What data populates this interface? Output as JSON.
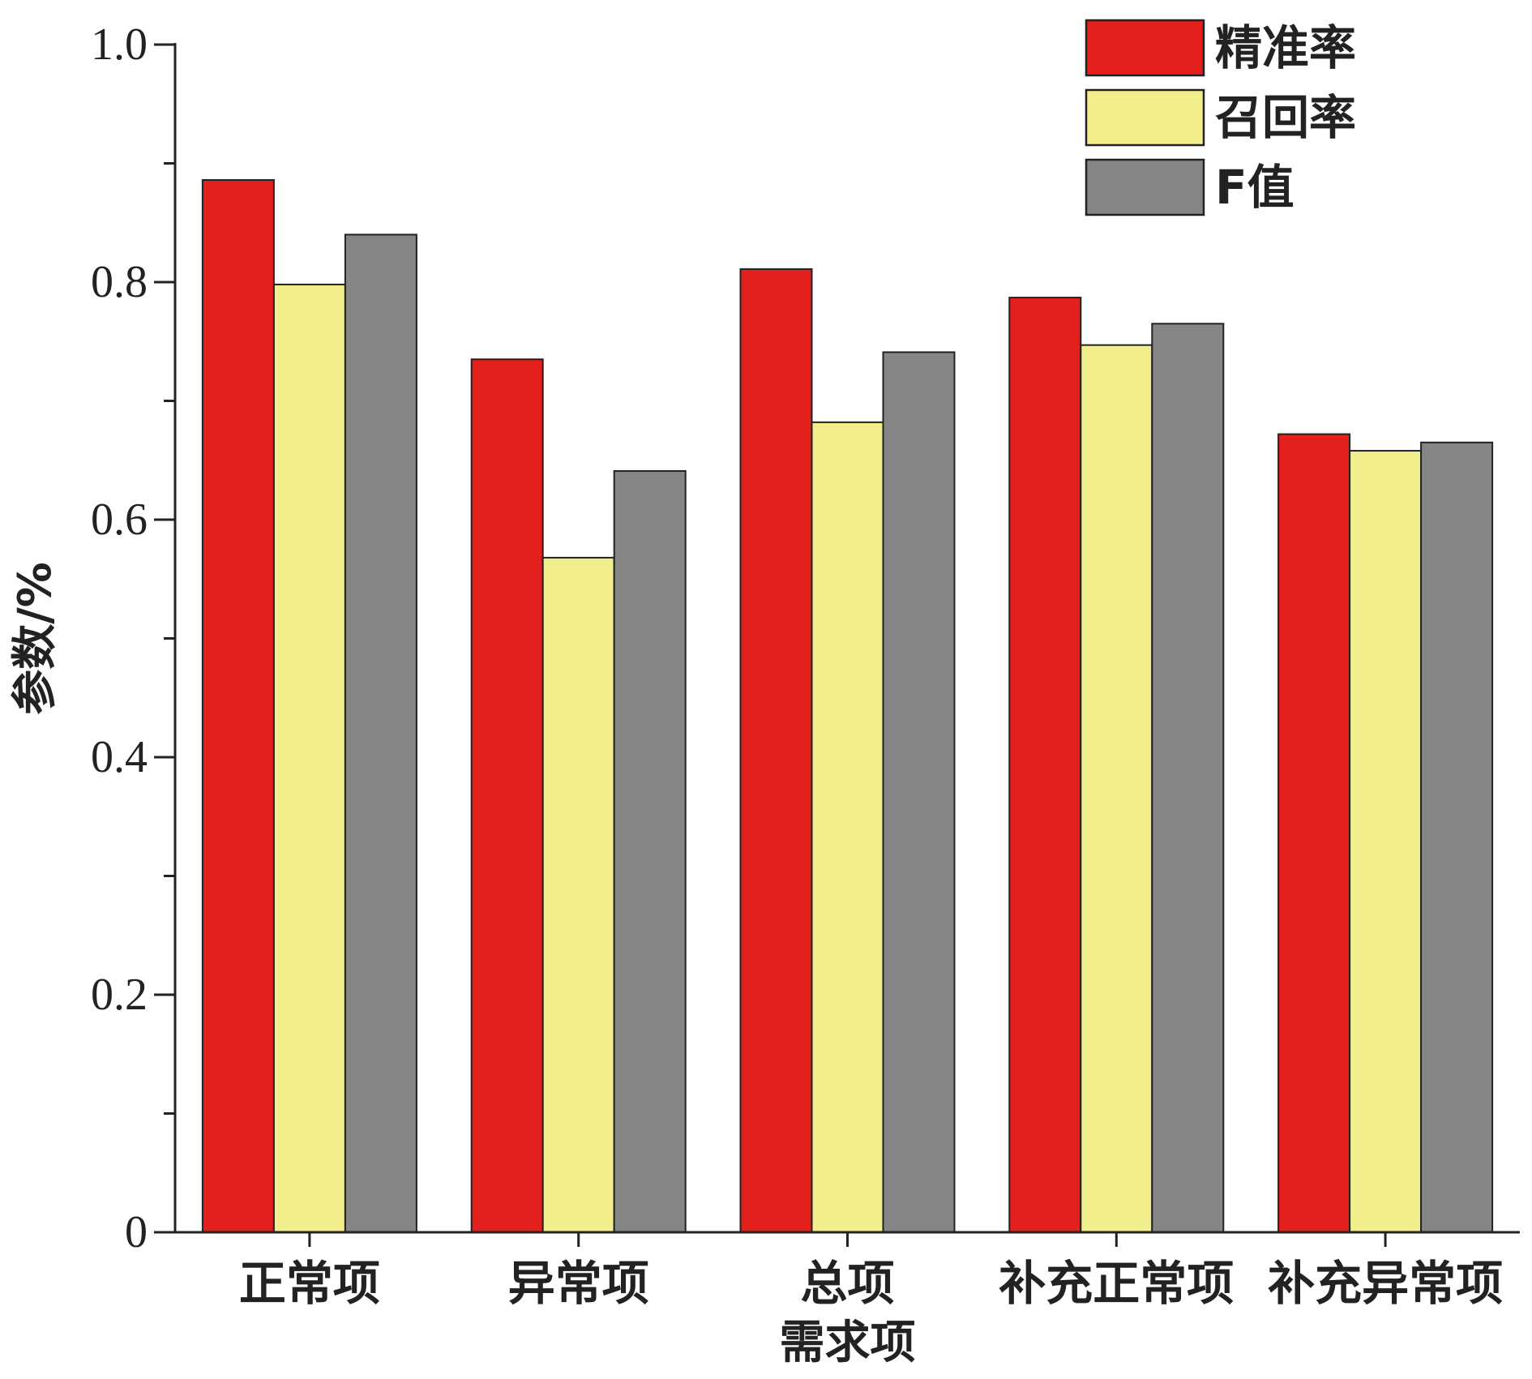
{
  "chart_data": {
    "type": "bar",
    "title": "",
    "xlabel": "需求项",
    "ylabel": "参数/%",
    "ylim": [
      0,
      1.0
    ],
    "yticks": [
      0,
      0.2,
      0.4,
      0.6,
      0.8,
      1.0
    ],
    "ytick_labels": [
      "0",
      "0.2",
      "0.4",
      "0.6",
      "0.8",
      "1.0"
    ],
    "grid": false,
    "legend_position": "top-right",
    "categories": [
      "正常项",
      "异常项",
      "总项",
      "补充正常项",
      "补充异常项"
    ],
    "series": [
      {
        "name": "精准率",
        "color": "#e3201b",
        "values": [
          0.886,
          0.735,
          0.811,
          0.787,
          0.672
        ]
      },
      {
        "name": "召回率",
        "color": "#f2ee8c",
        "values": [
          0.798,
          0.568,
          0.682,
          0.747,
          0.658
        ]
      },
      {
        "name": "F值",
        "color": "#858585",
        "values": [
          0.84,
          0.641,
          0.741,
          0.765,
          0.665
        ]
      }
    ]
  }
}
